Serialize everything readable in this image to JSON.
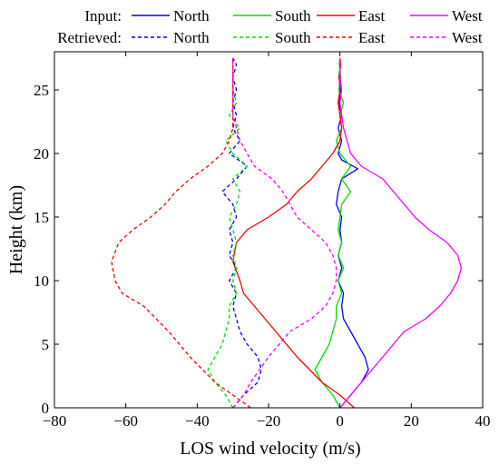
{
  "chart_data": {
    "type": "line",
    "xlabel": "LOS wind velocity (m/s)",
    "ylabel": "Height (km)",
    "xlim": [
      -80,
      40
    ],
    "ylim": [
      0,
      28
    ],
    "xticks": [
      -80,
      -60,
      -40,
      -20,
      0,
      20,
      40
    ],
    "yticks": [
      0,
      5,
      10,
      15,
      20,
      25
    ],
    "legend": {
      "placement": "top",
      "row_labels": [
        "Input:",
        "Retrieved:"
      ]
    },
    "series": [
      {
        "name": "North",
        "group": "Input",
        "color": "#0000ff",
        "dash": "solid",
        "points": [
          [
            0,
            0
          ],
          [
            3,
            1
          ],
          [
            6,
            2
          ],
          [
            8,
            3
          ],
          [
            7,
            4
          ],
          [
            5,
            5
          ],
          [
            3,
            6
          ],
          [
            1,
            7
          ],
          [
            0.5,
            8
          ],
          [
            1,
            9
          ],
          [
            -0.5,
            10
          ],
          [
            0.5,
            11
          ],
          [
            -0.5,
            12
          ],
          [
            0.5,
            13
          ],
          [
            0,
            14
          ],
          [
            0.5,
            15
          ],
          [
            -1,
            16
          ],
          [
            -0.5,
            17
          ],
          [
            0.5,
            18
          ],
          [
            5,
            18.8
          ],
          [
            0.5,
            19.5
          ],
          [
            -0.5,
            20
          ],
          [
            0.5,
            21
          ],
          [
            -0.5,
            22
          ],
          [
            0.5,
            23
          ],
          [
            -0.3,
            24
          ],
          [
            0.3,
            25
          ],
          [
            -0.3,
            26
          ],
          [
            0.2,
            27
          ],
          [
            0,
            27.5
          ]
        ]
      },
      {
        "name": "South",
        "group": "Input",
        "color": "#00dd00",
        "dash": "solid",
        "points": [
          [
            0,
            0
          ],
          [
            -2,
            1
          ],
          [
            -5,
            2
          ],
          [
            -7,
            3
          ],
          [
            -5,
            4
          ],
          [
            -3,
            5
          ],
          [
            -2,
            6
          ],
          [
            -1,
            7
          ],
          [
            -1,
            8
          ],
          [
            0.5,
            9
          ],
          [
            -0.5,
            10
          ],
          [
            1,
            11
          ],
          [
            -0.5,
            12
          ],
          [
            0.5,
            13
          ],
          [
            -0.5,
            14
          ],
          [
            0,
            15
          ],
          [
            0.5,
            16
          ],
          [
            3,
            17
          ],
          [
            0.5,
            18
          ],
          [
            3,
            19
          ],
          [
            0,
            20
          ],
          [
            -1,
            21
          ],
          [
            0.5,
            22
          ],
          [
            0,
            23
          ],
          [
            1,
            24
          ],
          [
            -0.3,
            25
          ],
          [
            0.3,
            26
          ],
          [
            -0.2,
            27
          ],
          [
            0,
            27.5
          ]
        ]
      },
      {
        "name": "East",
        "group": "Input",
        "color": "#ff0000",
        "dash": "solid",
        "points": [
          [
            4,
            0
          ],
          [
            0,
            1
          ],
          [
            -5,
            2
          ],
          [
            -12,
            4
          ],
          [
            -18,
            6
          ],
          [
            -24,
            8
          ],
          [
            -27,
            9
          ],
          [
            -28,
            10
          ],
          [
            -30,
            11.5
          ],
          [
            -29,
            13
          ],
          [
            -26,
            14
          ],
          [
            -20,
            15
          ],
          [
            -15,
            16
          ],
          [
            -12,
            17
          ],
          [
            -8,
            18
          ],
          [
            -5,
            19
          ],
          [
            -2,
            20
          ],
          [
            0,
            21
          ],
          [
            0.5,
            22
          ],
          [
            0,
            23
          ],
          [
            -0.5,
            24
          ],
          [
            0,
            25
          ],
          [
            -0.2,
            26
          ],
          [
            0.2,
            27
          ],
          [
            0,
            27.5
          ]
        ]
      },
      {
        "name": "West",
        "group": "Input",
        "color": "#ff00ff",
        "dash": "solid",
        "points": [
          [
            0,
            0
          ],
          [
            3,
            1
          ],
          [
            6,
            2
          ],
          [
            12,
            4
          ],
          [
            18,
            6
          ],
          [
            24,
            7
          ],
          [
            28,
            8
          ],
          [
            31,
            9
          ],
          [
            33,
            10
          ],
          [
            34,
            11
          ],
          [
            33,
            12
          ],
          [
            30,
            13
          ],
          [
            25,
            14
          ],
          [
            21,
            15
          ],
          [
            18,
            16
          ],
          [
            15,
            17
          ],
          [
            12,
            18
          ],
          [
            6,
            19
          ],
          [
            3,
            20
          ],
          [
            2,
            21
          ],
          [
            1,
            22
          ],
          [
            0.5,
            23
          ],
          [
            0,
            24
          ],
          [
            0.5,
            25
          ],
          [
            0,
            26
          ],
          [
            0,
            27
          ],
          [
            0,
            27.5
          ]
        ]
      },
      {
        "name": "North",
        "group": "Retrieved",
        "color": "#0000ff",
        "dash": "dashed",
        "points": [
          [
            -30,
            0
          ],
          [
            -27,
            1
          ],
          [
            -23,
            2
          ],
          [
            -22,
            3
          ],
          [
            -23,
            4
          ],
          [
            -26,
            5
          ],
          [
            -28,
            6
          ],
          [
            -29,
            7
          ],
          [
            -30,
            8
          ],
          [
            -29,
            9
          ],
          [
            -31,
            10
          ],
          [
            -29,
            11
          ],
          [
            -31,
            12
          ],
          [
            -30,
            13
          ],
          [
            -31,
            14
          ],
          [
            -29,
            15
          ],
          [
            -30,
            16
          ],
          [
            -33,
            17
          ],
          [
            -29,
            18
          ],
          [
            -26,
            19
          ],
          [
            -31,
            20
          ],
          [
            -28,
            21
          ],
          [
            -30,
            22
          ],
          [
            -29,
            23
          ],
          [
            -30,
            24
          ],
          [
            -29,
            25
          ],
          [
            -30,
            26
          ],
          [
            -29,
            27
          ],
          [
            -30,
            27.5
          ]
        ]
      },
      {
        "name": "South",
        "group": "Retrieved",
        "color": "#00dd00",
        "dash": "dashed",
        "points": [
          [
            -30,
            0
          ],
          [
            -32,
            1
          ],
          [
            -35,
            2
          ],
          [
            -37,
            3
          ],
          [
            -35,
            4
          ],
          [
            -33,
            5
          ],
          [
            -32,
            6
          ],
          [
            -31,
            7
          ],
          [
            -31,
            8
          ],
          [
            -29,
            9
          ],
          [
            -30,
            10
          ],
          [
            -29,
            11
          ],
          [
            -30,
            12
          ],
          [
            -29,
            13
          ],
          [
            -30,
            14
          ],
          [
            -31,
            15
          ],
          [
            -29,
            16
          ],
          [
            -28,
            17
          ],
          [
            -30,
            18
          ],
          [
            -26,
            19
          ],
          [
            -30,
            20
          ],
          [
            -32,
            21
          ],
          [
            -28,
            22
          ],
          [
            -31,
            23
          ],
          [
            -29,
            24
          ],
          [
            -30,
            25
          ],
          [
            -30,
            26
          ],
          [
            -30,
            27
          ],
          [
            -30,
            27.5
          ]
        ]
      },
      {
        "name": "East",
        "group": "Retrieved",
        "color": "#ff0000",
        "dash": "dashed",
        "points": [
          [
            -25,
            0
          ],
          [
            -30,
            1
          ],
          [
            -35,
            2
          ],
          [
            -42,
            4
          ],
          [
            -48,
            6
          ],
          [
            -55,
            8
          ],
          [
            -61,
            9
          ],
          [
            -63,
            10
          ],
          [
            -64,
            11.5
          ],
          [
            -62,
            13
          ],
          [
            -58,
            14
          ],
          [
            -53,
            15
          ],
          [
            -49,
            16
          ],
          [
            -46,
            17
          ],
          [
            -42,
            18
          ],
          [
            -37,
            19
          ],
          [
            -33,
            20
          ],
          [
            -31,
            21
          ],
          [
            -30,
            22
          ],
          [
            -30,
            23
          ],
          [
            -30,
            24
          ],
          [
            -30,
            25
          ],
          [
            -30,
            26
          ],
          [
            -30,
            27
          ],
          [
            -30,
            27.5
          ]
        ]
      },
      {
        "name": "West",
        "group": "Retrieved",
        "color": "#ff00ff",
        "dash": "dashed",
        "points": [
          [
            -30,
            0
          ],
          [
            -27,
            1
          ],
          [
            -25,
            2
          ],
          [
            -20,
            4
          ],
          [
            -14,
            6
          ],
          [
            -8,
            7
          ],
          [
            -4,
            8
          ],
          [
            -2,
            9
          ],
          [
            -1,
            10
          ],
          [
            -1,
            11
          ],
          [
            -2,
            12
          ],
          [
            -4,
            13
          ],
          [
            -8,
            14
          ],
          [
            -12,
            15
          ],
          [
            -14,
            16
          ],
          [
            -16,
            17
          ],
          [
            -19,
            18
          ],
          [
            -24,
            19
          ],
          [
            -26,
            20
          ],
          [
            -28,
            21
          ],
          [
            -29,
            22
          ],
          [
            -30,
            23
          ],
          [
            -30,
            24
          ],
          [
            -30,
            25
          ],
          [
            -30,
            26
          ],
          [
            -30,
            27
          ],
          [
            -30,
            27.5
          ]
        ]
      }
    ]
  }
}
